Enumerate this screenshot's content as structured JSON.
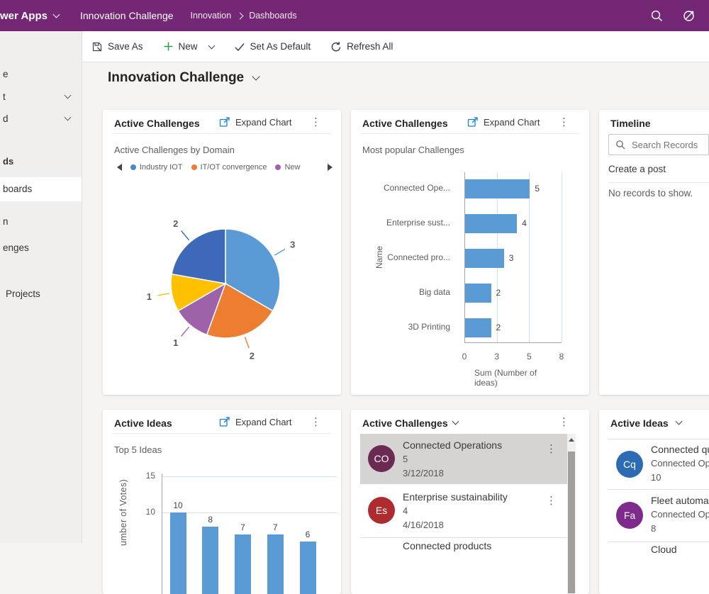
{
  "topbar": {
    "app_name": "wer Apps",
    "module": "Innovation Challenge",
    "breadcrumb": {
      "level1": "Innovation",
      "level2": "Dashboards"
    }
  },
  "toolbar": {
    "save_as": "Save As",
    "new_label": "New",
    "set_default": "Set As Default",
    "refresh_all": "Refresh All"
  },
  "sidebar": {
    "items": [
      {
        "label": "e"
      },
      {
        "label": "t",
        "chevron": true
      },
      {
        "label": "d",
        "chevron": true
      },
      {
        "label": "ds",
        "bold": true
      },
      {
        "label": "boards",
        "selected": true
      },
      {
        "label": "n"
      },
      {
        "label": "enges"
      },
      {
        "label": "Projects"
      }
    ]
  },
  "page": {
    "title": "Innovation Challenge"
  },
  "cards": {
    "active_challenges_pie": {
      "title": "Active Challenges",
      "expand_label": "Expand Chart"
    },
    "active_challenges_bar": {
      "title": "Active Challenges",
      "expand_label": "Expand Chart"
    },
    "timeline": {
      "title": "Timeline",
      "search_placeholder": "Search Records",
      "create_post": "Create a post",
      "empty_message": "No records to show."
    },
    "active_ideas_chart": {
      "title": "Active Ideas",
      "expand_label": "Expand Chart"
    },
    "active_challenges_list": {
      "title": "Active Challenges",
      "rows": [
        {
          "initials": "CO",
          "color": "#6B2A52",
          "title": "Connected Operations",
          "count": "5",
          "date": "3/12/2018",
          "selected": true
        },
        {
          "initials": "Es",
          "color": "#AE2B2E",
          "title": "Enterprise sustainability",
          "count": "4",
          "date": "4/16/2018",
          "selected": false
        },
        {
          "title": "Connected products",
          "partial": true
        }
      ]
    },
    "active_ideas_list": {
      "title": "Active Ideas",
      "rows": [
        {
          "initials": "Cq",
          "color": "#2D6CB3",
          "title": "Connected qu",
          "subtitle": "Connected Op",
          "count": "10"
        },
        {
          "initials": "Fa",
          "color": "#7D2A8C",
          "title": "Fleet automat",
          "subtitle": "Connected Op",
          "count": "8"
        },
        {
          "title": "Cloud",
          "partial": true
        }
      ]
    }
  },
  "chart_data": [
    {
      "type": "pie",
      "title": "Active Challenges by Domain",
      "legend": [
        {
          "label": "Industry IOT",
          "color": "#4A86C5"
        },
        {
          "label": "IT/OT convergence",
          "color": "#ED7D31"
        },
        {
          "label": "New",
          "color": "#9E62A8"
        }
      ],
      "slices": [
        {
          "value": 3,
          "color": "#5B9BD5"
        },
        {
          "value": 2,
          "color": "#ED7D31"
        },
        {
          "value": 1,
          "color": "#9E62A8"
        },
        {
          "value": 1,
          "color": "#FFC000"
        },
        {
          "value": 2,
          "color": "#3E68B8"
        }
      ],
      "total": 9
    },
    {
      "type": "bar",
      "orientation": "horizontal",
      "title": "Most popular Challenges",
      "categories": [
        "Connected Ope...",
        "Enterprise sust...",
        "Connected pro...",
        "Big data",
        "3D Printing"
      ],
      "values": [
        5,
        4,
        3,
        2,
        2
      ],
      "xlabel": "Sum (Number of ideas)",
      "ylabel": "Name",
      "xticks": [
        "0",
        "3",
        "5",
        "8"
      ],
      "xtick_positions": [
        0,
        2.5,
        5,
        7.5
      ],
      "xlim": [
        0,
        7.5
      ],
      "bar_color": "#5B9BD5"
    },
    {
      "type": "bar",
      "orientation": "vertical",
      "title": "Top 5 Ideas",
      "values": [
        10,
        8,
        7,
        7,
        6
      ],
      "ylabel": "umber of Votes)",
      "yticks": [
        15,
        10
      ],
      "bar_color": "#5B9BD5"
    }
  ],
  "colors": {
    "topbar": "#742774",
    "accent_blue": "#1B7FD4",
    "bar_blue": "#5B9BD5",
    "selected_row": "#D6D4D2"
  }
}
